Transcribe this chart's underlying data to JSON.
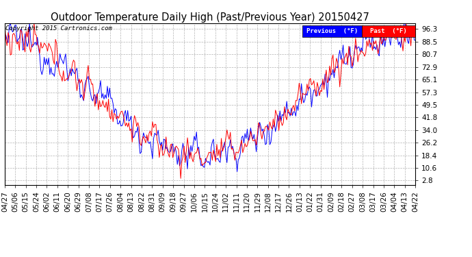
{
  "title": "Outdoor Temperature Daily High (Past/Previous Year) 20150427",
  "copyright": "Copyright 2015 Cartronics.com",
  "legend_previous": "Previous  (°F)",
  "legend_past": "Past  (°F)",
  "yticks": [
    2.8,
    10.6,
    18.4,
    26.2,
    34.0,
    41.8,
    49.5,
    57.3,
    65.1,
    72.9,
    80.7,
    88.5,
    96.3
  ],
  "ylim": [
    0,
    100
  ],
  "background_color": "#ffffff",
  "grid_color": "#aaaaaa",
  "previous_color": "#0000ff",
  "past_color": "#ff0000",
  "title_fontsize": 10.5,
  "tick_fontsize": 7.5,
  "xtick_labels": [
    "04/27",
    "05/06",
    "05/15",
    "05/24",
    "06/02",
    "06/11",
    "06/20",
    "06/29",
    "07/08",
    "07/17",
    "07/26",
    "08/04",
    "08/13",
    "08/22",
    "08/31",
    "09/09",
    "09/18",
    "09/27",
    "10/06",
    "10/15",
    "10/24",
    "11/02",
    "11/11",
    "11/20",
    "11/29",
    "12/08",
    "12/17",
    "12/26",
    "01/13",
    "01/22",
    "01/31",
    "02/09",
    "02/18",
    "02/27",
    "03/08",
    "03/17",
    "03/26",
    "04/04",
    "04/13",
    "04/22"
  ]
}
